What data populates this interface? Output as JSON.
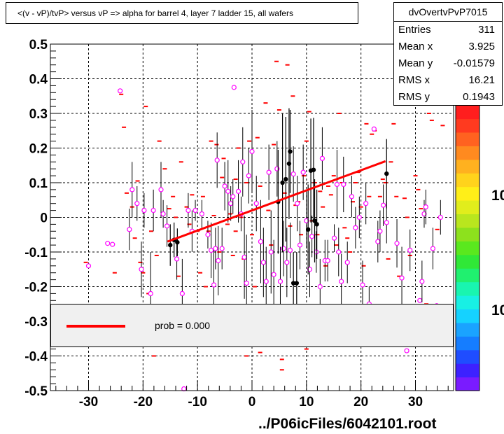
{
  "title": "<(v - vP)/tvP> versus   vP => alpha for barrel 4, layer 7 ladder 15, all wafers",
  "stats": {
    "name": "dvOvertvPvP7015",
    "rows": [
      {
        "key": "Entries",
        "value": "311"
      },
      {
        "key": "Mean x",
        "value": "3.925"
      },
      {
        "key": "Mean y",
        "value": "-0.01579"
      },
      {
        "key": "RMS x",
        "value": "16.21"
      },
      {
        "key": "RMS y",
        "value": "0.1943"
      }
    ]
  },
  "legend": {
    "label": "prob = 0.000",
    "line_color": "#ff0000"
  },
  "footer": "../P06icFiles/6042101.root",
  "palette_labels": [
    "10",
    "10"
  ],
  "colors": {
    "fit": "#ff0000",
    "profile": "#000000",
    "markers": "#ff00ff",
    "cells": "#ff0000"
  },
  "chart_data": {
    "type": "scatter",
    "title": "<(v - vP)/tvP> versus   vP => alpha for barrel 4, layer 7 ladder 15, all wafers",
    "xlim": [
      -37,
      37
    ],
    "ylim": [
      -0.5,
      0.5
    ],
    "x_ticks": [
      "-30",
      "-20",
      "-10",
      "0",
      "10",
      "20",
      "30"
    ],
    "y_ticks": [
      "-0.5",
      "-0.4",
      "-0.3",
      "-0.2",
      "-0.1",
      "0",
      "0.1",
      "0.2",
      "0.3",
      "0.4",
      "0.5"
    ],
    "grid": true,
    "fit_line": {
      "x": [
        -15.5,
        24.5
      ],
      "y": [
        -0.07,
        0.162
      ]
    },
    "profile_points": [
      {
        "x": -15.0,
        "y": -0.08,
        "err": 0.06
      },
      {
        "x": -14.3,
        "y": -0.065,
        "err": 0.05
      },
      {
        "x": -13.7,
        "y": -0.072,
        "err": 0.04
      },
      {
        "x": 4.8,
        "y": 0.045,
        "err": 0.15
      },
      {
        "x": 5.6,
        "y": 0.1,
        "err": 0.2
      },
      {
        "x": 6.2,
        "y": 0.11,
        "err": 0.18
      },
      {
        "x": 6.8,
        "y": 0.155,
        "err": 0.16
      },
      {
        "x": 7.0,
        "y": 0.19,
        "err": 0.12
      },
      {
        "x": 7.6,
        "y": -0.19,
        "err": 0.09
      },
      {
        "x": 8.2,
        "y": -0.19,
        "err": 0.09
      },
      {
        "x": 10.3,
        "y": -0.035,
        "err": 0.13
      },
      {
        "x": 10.8,
        "y": 0.135,
        "err": 0.15
      },
      {
        "x": 11.3,
        "y": 0.137,
        "err": 0.15
      },
      {
        "x": 11.5,
        "y": -0.01,
        "err": 0.12
      },
      {
        "x": 11.9,
        "y": -0.02,
        "err": 0.1
      },
      {
        "x": 24.7,
        "y": 0.126,
        "err": 0.1
      }
    ],
    "marker_points": [
      {
        "x": -30.0,
        "y": -0.14,
        "err": 0.0
      },
      {
        "x": -26.5,
        "y": -0.075,
        "err": 0.0
      },
      {
        "x": -25.6,
        "y": -0.078,
        "err": 0.0
      },
      {
        "x": -24.2,
        "y": 0.365,
        "err": 0.0
      },
      {
        "x": -22.5,
        "y": -0.035,
        "err": 0.06
      },
      {
        "x": -22.0,
        "y": 0.08,
        "err": 0.08
      },
      {
        "x": -21.1,
        "y": 0.04,
        "err": 0.05
      },
      {
        "x": -20.3,
        "y": -0.15,
        "err": 0.08
      },
      {
        "x": -19.8,
        "y": 0.02,
        "err": 0.05
      },
      {
        "x": -18.6,
        "y": -0.22,
        "err": 0.12
      },
      {
        "x": -18.1,
        "y": 0.02,
        "err": 0.06
      },
      {
        "x": -16.7,
        "y": 0.08,
        "err": 0.08
      },
      {
        "x": -16.3,
        "y": 0.01,
        "err": 0.04
      },
      {
        "x": -15.6,
        "y": -0.025,
        "err": 0.06
      },
      {
        "x": -13.8,
        "y": -0.12,
        "err": 0.06
      },
      {
        "x": -12.8,
        "y": -0.22,
        "err": 0.1
      },
      {
        "x": -11.7,
        "y": 0.02,
        "err": 0.05
      },
      {
        "x": -11.0,
        "y": -0.04,
        "err": 0.06
      },
      {
        "x": -10.4,
        "y": 0.02,
        "err": 0.03
      },
      {
        "x": -9.2,
        "y": 0.01,
        "err": 0.04
      },
      {
        "x": -8.1,
        "y": -0.05,
        "err": 0.04
      },
      {
        "x": -7.5,
        "y": -0.095,
        "err": 0.08
      },
      {
        "x": -6.7,
        "y": -0.09,
        "err": 0.06
      },
      {
        "x": -6.2,
        "y": -0.125,
        "err": 0.1
      },
      {
        "x": -7.0,
        "y": -0.195,
        "err": 0.1
      },
      {
        "x": -5.5,
        "y": -0.09,
        "err": 0.06
      },
      {
        "x": -6.4,
        "y": 0.165,
        "err": 0.08
      },
      {
        "x": -5.0,
        "y": 0.09,
        "err": 0.07
      },
      {
        "x": -4.4,
        "y": 0.075,
        "err": 0.09
      },
      {
        "x": -3.9,
        "y": 0.04,
        "err": 0.05
      },
      {
        "x": -3.5,
        "y": 0.06,
        "err": 0.05
      },
      {
        "x": -3.3,
        "y": 0.375,
        "err": 0.0
      },
      {
        "x": -2.5,
        "y": 0.075,
        "err": 0.09
      },
      {
        "x": -2.0,
        "y": 0.01,
        "err": 0.05
      },
      {
        "x": -1.7,
        "y": 0.16,
        "err": 0.1
      },
      {
        "x": -1.4,
        "y": -0.115,
        "err": 0.12
      },
      {
        "x": -1.0,
        "y": -0.19,
        "err": 0.14
      },
      {
        "x": -0.6,
        "y": 0.12,
        "err": 0.08
      },
      {
        "x": 0.0,
        "y": 0.19,
        "err": 0.12
      },
      {
        "x": 0.8,
        "y": 0.04,
        "err": 0.08
      },
      {
        "x": 1.6,
        "y": -0.07,
        "err": 0.12
      },
      {
        "x": 2.1,
        "y": -0.13,
        "err": 0.1
      },
      {
        "x": 2.6,
        "y": -0.185,
        "err": 0.1
      },
      {
        "x": 3.1,
        "y": 0.13,
        "err": 0.08
      },
      {
        "x": 3.5,
        "y": -0.1,
        "err": 0.12
      },
      {
        "x": 4.0,
        "y": -0.165,
        "err": 0.1
      },
      {
        "x": 4.6,
        "y": 0.14,
        "err": 0.08
      },
      {
        "x": 5.2,
        "y": -0.185,
        "err": 0.1
      },
      {
        "x": 5.8,
        "y": -0.09,
        "err": 0.08
      },
      {
        "x": 6.4,
        "y": -0.13,
        "err": 0.1
      },
      {
        "x": 7.0,
        "y": -0.095,
        "err": 0.08
      },
      {
        "x": 7.6,
        "y": 0.125,
        "err": 0.08
      },
      {
        "x": 8.3,
        "y": 0.04,
        "err": 0.08
      },
      {
        "x": 8.8,
        "y": -0.08,
        "err": 0.07
      },
      {
        "x": 9.4,
        "y": 0.13,
        "err": 0.08
      },
      {
        "x": 10.0,
        "y": -0.01,
        "err": 0.08
      },
      {
        "x": 10.6,
        "y": -0.15,
        "err": 0.08
      },
      {
        "x": 11.0,
        "y": -0.055,
        "err": 0.06
      },
      {
        "x": 11.8,
        "y": -0.1,
        "err": 0.06
      },
      {
        "x": 12.5,
        "y": -0.2,
        "err": 0.08
      },
      {
        "x": 12.9,
        "y": 0.17,
        "err": 0.09
      },
      {
        "x": 13.4,
        "y": -0.125,
        "err": 0.06
      },
      {
        "x": 13.9,
        "y": -0.125,
        "err": 0.06
      },
      {
        "x": 15.1,
        "y": -0.06,
        "err": 0.04
      },
      {
        "x": 15.6,
        "y": 0.095,
        "err": 0.1
      },
      {
        "x": 15.9,
        "y": -0.1,
        "err": 0.07
      },
      {
        "x": 16.4,
        "y": -0.185,
        "err": 0.08
      },
      {
        "x": 16.8,
        "y": 0.095,
        "err": 0.08
      },
      {
        "x": 17.5,
        "y": -0.13,
        "err": 0.06
      },
      {
        "x": 18.3,
        "y": 0.06,
        "err": 0.06
      },
      {
        "x": 19.0,
        "y": -0.03,
        "err": 0.06
      },
      {
        "x": 19.7,
        "y": 0.0,
        "err": 0.06
      },
      {
        "x": 20.3,
        "y": -0.195,
        "err": 0.07
      },
      {
        "x": 20.9,
        "y": 0.04,
        "err": 0.06
      },
      {
        "x": 21.5,
        "y": -0.25,
        "err": 0.05
      },
      {
        "x": 22.4,
        "y": 0.255,
        "err": 0.0
      },
      {
        "x": 23.1,
        "y": -0.07,
        "err": 0.06
      },
      {
        "x": 23.5,
        "y": -0.04,
        "err": 0.06
      },
      {
        "x": 24.1,
        "y": 0.035,
        "err": 0.06
      },
      {
        "x": 24.7,
        "y": -0.015,
        "err": 0.06
      },
      {
        "x": 26.6,
        "y": -0.075,
        "err": 0.07
      },
      {
        "x": 27.5,
        "y": -0.175,
        "err": 0.09
      },
      {
        "x": 28.4,
        "y": -0.385,
        "err": 0.0
      },
      {
        "x": 29.0,
        "y": -0.095,
        "err": 0.06
      },
      {
        "x": 30.8,
        "y": -0.24,
        "err": 0.0
      },
      {
        "x": 31.2,
        "y": -0.185,
        "err": 0.06
      },
      {
        "x": 31.6,
        "y": 0.01,
        "err": 0.04
      },
      {
        "x": 31.9,
        "y": 0.03,
        "err": 0.05
      },
      {
        "x": 33.2,
        "y": -0.09,
        "err": 0.06
      },
      {
        "x": 34.6,
        "y": 0.0,
        "err": 0.05
      },
      {
        "x": 33.9,
        "y": -0.255,
        "err": 0.0
      },
      {
        "x": -12.5,
        "y": -0.495,
        "err": 0.0
      }
    ],
    "cells": [
      [
        -30.5,
        -0.13
      ],
      [
        -25.2,
        -0.16
      ],
      [
        -24.0,
        0.355
      ],
      [
        -23.5,
        0.26
      ],
      [
        -23.0,
        0.07
      ],
      [
        -22.0,
        0.03
      ],
      [
        -21.5,
        -0.06
      ],
      [
        -21.0,
        0.105
      ],
      [
        -20.5,
        -0.13
      ],
      [
        -20.0,
        -0.16
      ],
      [
        -19.5,
        0.32
      ],
      [
        -19.0,
        -0.22
      ],
      [
        -18.0,
        -0.4
      ],
      [
        -17.5,
        -0.11
      ],
      [
        -17.0,
        0.22
      ],
      [
        -16.0,
        0.14
      ],
      [
        -15.2,
        0.025
      ],
      [
        -14.5,
        0.06
      ],
      [
        -14.0,
        0.0
      ],
      [
        -13.5,
        -0.17
      ],
      [
        -12.0,
        0.03
      ],
      [
        -11.5,
        -0.02
      ],
      [
        -11.0,
        0.065
      ],
      [
        -10.0,
        -0.04
      ],
      [
        -9.5,
        -0.16
      ],
      [
        -9.0,
        0.06
      ],
      [
        -8.5,
        -0.2
      ],
      [
        -8.0,
        -0.04
      ],
      [
        -7.5,
        0.22
      ],
      [
        -7.0,
        0.005
      ],
      [
        -6.5,
        0.21
      ],
      [
        -6.0,
        -0.1
      ],
      [
        -5.5,
        0.115
      ],
      [
        -5.2,
        0.17
      ],
      [
        -4.5,
        -0.02
      ],
      [
        -4.0,
        0.01
      ],
      [
        -3.5,
        -0.11
      ],
      [
        -3.0,
        0.11
      ],
      [
        -2.5,
        0.2
      ],
      [
        -2.0,
        0.0
      ],
      [
        -1.5,
        -0.12
      ],
      [
        -1.0,
        0.1
      ],
      [
        -0.5,
        0.22
      ],
      [
        0.0,
        -0.05
      ],
      [
        0.5,
        -0.2
      ],
      [
        1.0,
        0.23
      ],
      [
        1.5,
        0.09
      ],
      [
        2.0,
        -0.28
      ],
      [
        2.5,
        0.33
      ],
      [
        3.0,
        0.02
      ],
      [
        3.5,
        -0.08
      ],
      [
        4.0,
        0.21
      ],
      [
        4.5,
        0.45
      ],
      [
        5.0,
        0.31
      ],
      [
        5.5,
        -0.41
      ],
      [
        6.0,
        0.07
      ],
      [
        6.5,
        0.44
      ],
      [
        7.0,
        -0.025
      ],
      [
        7.5,
        0.35
      ],
      [
        8.0,
        0.035
      ],
      [
        8.5,
        0.045
      ],
      [
        9.0,
        -0.05
      ],
      [
        9.5,
        0.12
      ],
      [
        10.0,
        0.22
      ],
      [
        10.5,
        0.305
      ],
      [
        11.0,
        -0.01
      ],
      [
        11.5,
        0.1
      ],
      [
        12.0,
        -0.05
      ],
      [
        12.5,
        0.075
      ],
      [
        13.0,
        0.03
      ],
      [
        13.5,
        -0.14
      ],
      [
        14.0,
        0.09
      ],
      [
        14.5,
        0.065
      ],
      [
        15.0,
        0.12
      ],
      [
        15.5,
        -0.08
      ],
      [
        16.0,
        0.3
      ],
      [
        16.5,
        0.1
      ],
      [
        17.0,
        -0.03
      ],
      [
        17.5,
        -0.06
      ],
      [
        18.0,
        -0.1
      ],
      [
        18.5,
        0.045
      ],
      [
        19.0,
        0.1
      ],
      [
        19.5,
        0.13
      ],
      [
        20.0,
        0.03
      ],
      [
        20.5,
        -0.14
      ],
      [
        21.0,
        0.27
      ],
      [
        21.5,
        0.06
      ],
      [
        22.0,
        0.24
      ],
      [
        22.5,
        0.25
      ],
      [
        23.5,
        0.06
      ],
      [
        24.0,
        0.11
      ],
      [
        24.5,
        0.1
      ],
      [
        25.0,
        -0.12
      ],
      [
        25.5,
        0.16
      ],
      [
        26.0,
        0.27
      ],
      [
        26.5,
        0.06
      ],
      [
        27.0,
        -0.17
      ],
      [
        28.0,
        0.055
      ],
      [
        28.5,
        0.0
      ],
      [
        29.0,
        -0.11
      ],
      [
        30.0,
        0.12
      ],
      [
        30.5,
        0.08
      ],
      [
        31.0,
        0.025
      ],
      [
        32.0,
        -0.25
      ],
      [
        32.5,
        0.3
      ],
      [
        33.0,
        0.28
      ],
      [
        34.0,
        -0.035
      ],
      [
        34.5,
        0.0
      ],
      [
        35.0,
        0.265
      ],
      [
        1.5,
        -0.39
      ],
      [
        10.0,
        -0.38
      ],
      [
        -1.0,
        -0.4
      ],
      [
        5.5,
        -0.44
      ],
      [
        -18.5,
        -0.04
      ],
      [
        -13.0,
        0.16
      ],
      [
        -3.0,
        -0.04
      ]
    ],
    "palette_colors": [
      "#7a1bff",
      "#3d21ff",
      "#1f4dff",
      "#157dff",
      "#1aa3ff",
      "#15d2ff",
      "#18f0e4",
      "#19f5b0",
      "#20f06f",
      "#30e837",
      "#5ae81e",
      "#8de11d",
      "#b9e61e",
      "#e1ed1c",
      "#ffef18",
      "#ffd31c",
      "#ffb11f",
      "#ff8a1f",
      "#ff6220",
      "#ff3a1f",
      "#ff1e1e"
    ]
  }
}
